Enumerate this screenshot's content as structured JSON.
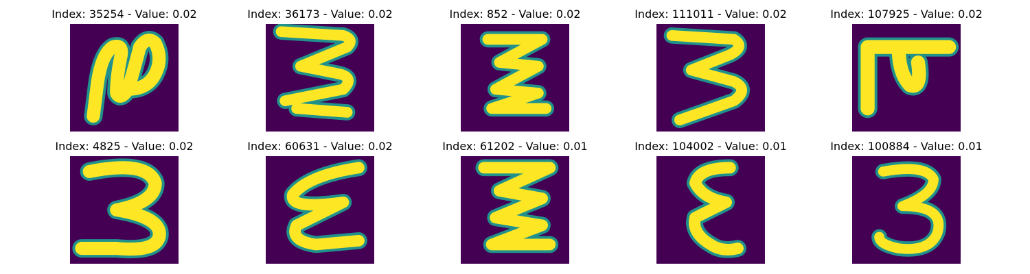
{
  "figure": {
    "background": "#ffffff",
    "panels": [
      {
        "title": "Index: 35254 - Value: 0.02",
        "glyph": "curly-2-like-handwritten-glyph"
      },
      {
        "title": "Index: 36173 - Value: 0.02",
        "glyph": "handwritten-3-rotated-glyph"
      },
      {
        "title": "Index: 852 - Value: 0.02",
        "glyph": "zigzag-z-glyph"
      },
      {
        "title": "Index: 111011 - Value: 0.02",
        "glyph": "handwritten-3-rotated-glyph"
      },
      {
        "title": "Index: 107925 - Value: 0.02",
        "glyph": "blocky-hook-glyph"
      },
      {
        "title": "Index: 4825 - Value: 0.02",
        "glyph": "handwritten-3-glyph"
      },
      {
        "title": "Index: 60631 - Value: 0.02",
        "glyph": "handwritten-epsilon-glyph"
      },
      {
        "title": "Index: 61202 - Value: 0.01",
        "glyph": "zigzag-z-glyph"
      },
      {
        "title": "Index: 104002 - Value: 0.01",
        "glyph": "handwritten-epsilon-glyph"
      },
      {
        "title": "Index: 100884 - Value: 0.01",
        "glyph": "handwritten-3-glyph"
      }
    ]
  },
  "colors": {
    "image_background": "#440154",
    "stroke_edge": "#21918c",
    "stroke_core": "#fde725"
  }
}
